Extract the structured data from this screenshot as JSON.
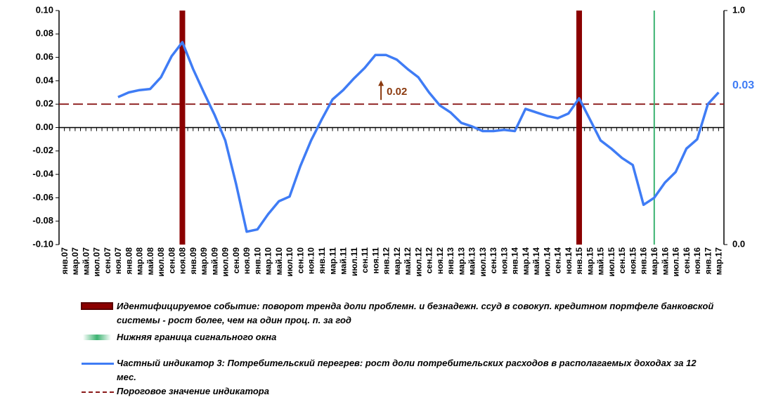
{
  "chart_data": {
    "type": "line",
    "categories": [
      "янв.07",
      "мар.07",
      "май.07",
      "июл.07",
      "сен.07",
      "ноя.07",
      "янв.08",
      "мар.08",
      "май.08",
      "июл.08",
      "сен.08",
      "ноя.08",
      "янв.09",
      "мар.09",
      "май.09",
      "июл.09",
      "сен.09",
      "ноя.09",
      "янв.10",
      "мар.10",
      "май.10",
      "июл.10",
      "сен.10",
      "ноя.10",
      "янв.11",
      "мар.11",
      "май.11",
      "июл.11",
      "сен.11",
      "ноя.11",
      "янв.12",
      "мар.12",
      "май.12",
      "июл.12",
      "сен.12",
      "ноя.12",
      "янв.13",
      "мар.13",
      "май.13",
      "июл.13",
      "сен.13",
      "ноя.13",
      "янв.14",
      "мар.14",
      "май.14",
      "июл.14",
      "сен.14",
      "ноя.14",
      "янв.15",
      "мар.15",
      "май.15",
      "июл.15",
      "сен.15",
      "ноя.15",
      "янв.16",
      "мар.16",
      "май.16",
      "июл.16",
      "сен.16",
      "ноя.16",
      "янв.17",
      "мар.17"
    ],
    "series": [
      {
        "name": "Частный индикатор 3: Потребительский перегрев: рост доли потребительских расходов в располагаемых доходах за 12 мес.",
        "color": "#3f7cf5",
        "values": [
          null,
          null,
          null,
          null,
          null,
          0.026,
          0.03,
          0.032,
          0.033,
          0.043,
          0.061,
          0.073,
          0.05,
          0.03,
          0.011,
          -0.011,
          -0.048,
          -0.089,
          -0.087,
          -0.074,
          -0.063,
          -0.059,
          -0.033,
          -0.011,
          0.007,
          0.024,
          0.032,
          0.042,
          0.051,
          0.062,
          0.062,
          0.058,
          0.05,
          0.043,
          0.03,
          0.019,
          0.013,
          0.004,
          0.001,
          -0.003,
          -0.003,
          -0.002,
          -0.003,
          0.016,
          0.013,
          0.01,
          0.008,
          0.012,
          0.025,
          0.007,
          -0.011,
          -0.018,
          -0.026,
          -0.032,
          -0.066,
          -0.06,
          -0.047,
          -0.038,
          -0.018,
          -0.01,
          0.02,
          0.03
        ]
      }
    ],
    "threshold": {
      "name": "Пороговое значение индикатора",
      "color": "#8b1a1a",
      "value": 0.02
    },
    "events": {
      "name": "Идентифицируемое событие: поворот тренда доли проблемн. и безнадежн. ссуд в совокуп. кредитном портфеле банковской системы - рост более, чем на один проц. п. за год",
      "color": "#8b0000",
      "at": [
        "ноя.08",
        "янв.15"
      ]
    },
    "signal": {
      "name": "Нижняя граница сигнального окна",
      "color": "#3cb371",
      "at": [
        "мар.16"
      ]
    },
    "ylim": [
      -0.1,
      0.1
    ],
    "yticks": [
      {
        "value": -0.1,
        "label": "-0.10"
      },
      {
        "value": -0.08,
        "label": "-0.08"
      },
      {
        "value": -0.06,
        "label": "-0.06"
      },
      {
        "value": -0.04,
        "label": "-0.04"
      },
      {
        "value": -0.02,
        "label": "-0.02"
      },
      {
        "value": 0,
        "label": "0.00"
      },
      {
        "value": 0.02,
        "label": "0.02"
      },
      {
        "value": 0.04,
        "label": "0.04"
      },
      {
        "value": 0.06,
        "label": "0.06"
      },
      {
        "value": 0.08,
        "label": "0.08"
      },
      {
        "value": 0.1,
        "label": "0.10"
      }
    ],
    "y2lim": [
      0,
      1
    ],
    "y2ticks": [
      {
        "value": 0,
        "label": "0.0"
      },
      {
        "value": 1,
        "label": "1.0"
      }
    ]
  }
}
